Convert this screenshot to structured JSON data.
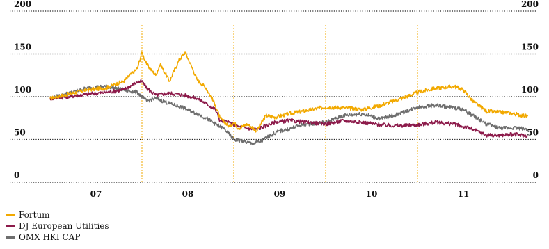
{
  "chart_data": {
    "type": "line",
    "title": "",
    "xlabel": "",
    "ylabel": "",
    "ylim": [
      0,
      200
    ],
    "xlim": [
      2006.5,
      2011.95
    ],
    "yticks": [
      "0",
      "50",
      "100",
      "150",
      "200"
    ],
    "xticks": [
      "07",
      "08",
      "09",
      "10",
      "11"
    ],
    "year_separators": [
      2007.5,
      2008.5,
      2009.5,
      2010.5
    ],
    "grid": "dotted horizontal lines, dashed vertical year separators",
    "legend_placement": "bottom-left",
    "series": [
      {
        "name": "Fortum",
        "color": "#f2a900",
        "x": [
          2006.5,
          2006.7,
          2006.9,
          2007.1,
          2007.3,
          2007.45,
          2007.5,
          2007.55,
          2007.65,
          2007.7,
          2007.8,
          2007.9,
          2007.97,
          2008.05,
          2008.1,
          2008.2,
          2008.3,
          2008.35,
          2008.45,
          2008.5,
          2008.55,
          2008.65,
          2008.75,
          2008.85,
          2008.95,
          2009.1,
          2009.3,
          2009.5,
          2009.7,
          2009.9,
          2010.1,
          2010.3,
          2010.5,
          2010.7,
          2010.9,
          2011.0,
          2011.1,
          2011.25,
          2011.5,
          2011.65,
          2011.7
        ],
        "values": [
          98,
          103,
          108,
          110,
          118,
          133,
          152,
          138,
          125,
          138,
          118,
          142,
          152,
          133,
          120,
          110,
          90,
          75,
          65,
          70,
          63,
          68,
          60,
          78,
          76,
          80,
          84,
          88,
          87,
          85,
          90,
          97,
          105,
          110,
          112,
          108,
          95,
          83,
          81,
          78,
          77
        ]
      },
      {
        "name": "DJ European Utilities",
        "color": "#8c1a4a",
        "x": [
          2006.5,
          2006.7,
          2006.9,
          2007.1,
          2007.3,
          2007.45,
          2007.5,
          2007.55,
          2007.65,
          2007.8,
          2007.95,
          2008.1,
          2008.2,
          2008.3,
          2008.35,
          2008.45,
          2008.55,
          2008.65,
          2008.75,
          2008.85,
          2008.95,
          2009.1,
          2009.3,
          2009.5,
          2009.7,
          2009.9,
          2010.1,
          2010.3,
          2010.5,
          2010.7,
          2010.9,
          2011.0,
          2011.1,
          2011.25,
          2011.4,
          2011.55,
          2011.7
        ],
        "values": [
          98,
          100,
          103,
          105,
          108,
          117,
          118,
          110,
          102,
          104,
          102,
          98,
          92,
          85,
          72,
          70,
          65,
          63,
          62,
          66,
          70,
          72,
          70,
          68,
          72,
          70,
          67,
          66,
          67,
          70,
          68,
          65,
          62,
          55,
          55,
          56,
          54
        ]
      },
      {
        "name": "OMX HKI CAP",
        "color": "#6e6e6e",
        "x": [
          2006.5,
          2006.7,
          2006.9,
          2007.1,
          2007.3,
          2007.45,
          2007.55,
          2007.65,
          2007.8,
          2007.95,
          2008.1,
          2008.2,
          2008.3,
          2008.4,
          2008.5,
          2008.6,
          2008.7,
          2008.8,
          2008.9,
          2009.0,
          2009.1,
          2009.2,
          2009.3,
          2009.5,
          2009.7,
          2009.9,
          2010.1,
          2010.3,
          2010.5,
          2010.7,
          2010.9,
          2011.0,
          2011.1,
          2011.25,
          2011.4,
          2011.55,
          2011.7
        ],
        "values": [
          98,
          104,
          110,
          112,
          108,
          105,
          95,
          98,
          92,
          87,
          80,
          75,
          68,
          62,
          50,
          48,
          45,
          48,
          55,
          60,
          62,
          66,
          68,
          70,
          78,
          80,
          74,
          80,
          88,
          90,
          87,
          85,
          78,
          68,
          63,
          64,
          62
        ]
      }
    ]
  }
}
